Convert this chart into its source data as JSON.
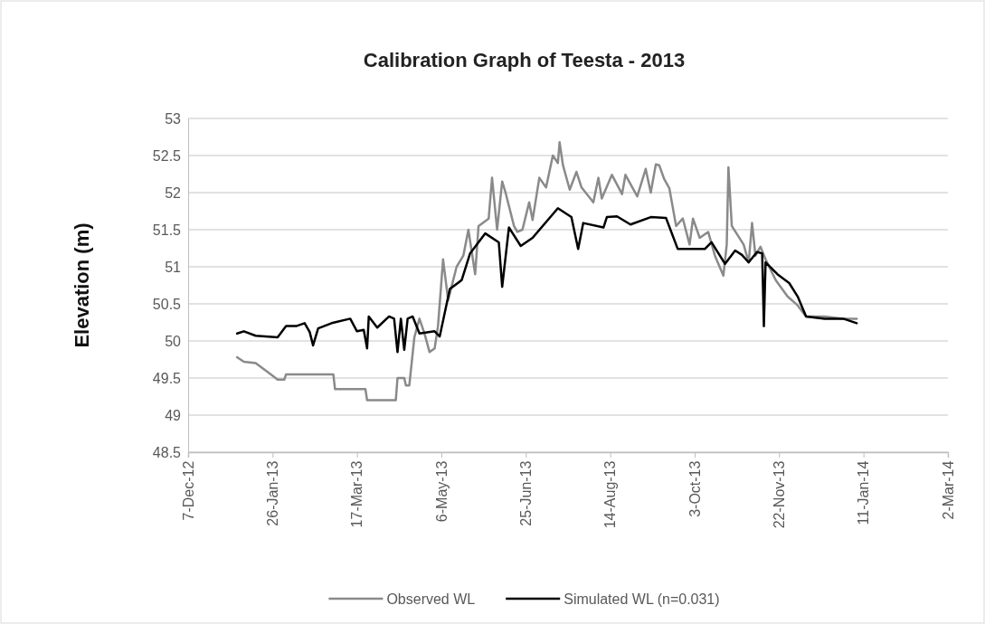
{
  "chart_data": {
    "type": "line",
    "title": "Calibration Graph of Teesta - 2013",
    "ylabel": "Elevation (m)",
    "xlim": [
      "2012-12-07",
      "2014-03-02"
    ],
    "xticks": [
      {
        "value": "2012-12-07",
        "label": "7-Dec-12"
      },
      {
        "value": "2013-01-26",
        "label": "26-Jan-13"
      },
      {
        "value": "2013-03-17",
        "label": "17-Mar-13"
      },
      {
        "value": "2013-05-06",
        "label": "6-May-13"
      },
      {
        "value": "2013-06-25",
        "label": "25-Jun-13"
      },
      {
        "value": "2013-08-14",
        "label": "14-Aug-13"
      },
      {
        "value": "2013-10-03",
        "label": "3-Oct-13"
      },
      {
        "value": "2013-11-22",
        "label": "22-Nov-13"
      },
      {
        "value": "2014-01-11",
        "label": "11-Jan-14"
      },
      {
        "value": "2014-03-02",
        "label": "2-Mar-14"
      }
    ],
    "ylim": [
      48.5,
      53
    ],
    "yticks": [
      48.5,
      49,
      49.5,
      50,
      50.5,
      51,
      51.5,
      52,
      52.5,
      53
    ],
    "grid": "y",
    "legend": "bottom",
    "marker": "none",
    "line_style": "solid",
    "series": [
      {
        "name": "Observed WL",
        "color": "#8a8a8a",
        "x": [
          "2013-01-05",
          "2013-01-09",
          "2013-01-16",
          "2013-01-25",
          "2013-01-29",
          "2013-02-02",
          "2013-02-03",
          "2013-03-03",
          "2013-03-04",
          "2013-03-22",
          "2013-03-23",
          "2013-04-09",
          "2013-04-10",
          "2013-04-14",
          "2013-04-15",
          "2013-04-17",
          "2013-04-20",
          "2013-04-23",
          "2013-04-26",
          "2013-04-29",
          "2013-05-02",
          "2013-05-04",
          "2013-05-07",
          "2013-05-10",
          "2013-05-15",
          "2013-05-19",
          "2013-05-22",
          "2013-05-26",
          "2013-05-28",
          "2013-06-03",
          "2013-06-05",
          "2013-06-08",
          "2013-06-11",
          "2013-06-13",
          "2013-06-18",
          "2013-06-20",
          "2013-06-23",
          "2013-06-27",
          "2013-06-29",
          "2013-07-03",
          "2013-07-07",
          "2013-07-11",
          "2013-07-14",
          "2013-07-15",
          "2013-07-17",
          "2013-07-21",
          "2013-07-25",
          "2013-07-28",
          "2013-08-04",
          "2013-08-07",
          "2013-08-09",
          "2013-08-15",
          "2013-08-21",
          "2013-08-23",
          "2013-08-30",
          "2013-09-04",
          "2013-09-07",
          "2013-09-10",
          "2013-09-12",
          "2013-09-15",
          "2013-09-18",
          "2013-09-22",
          "2013-09-26",
          "2013-09-30",
          "2013-10-02",
          "2013-10-06",
          "2013-10-11",
          "2013-10-15",
          "2013-10-20",
          "2013-10-22",
          "2013-10-23",
          "2013-10-25",
          "2013-11-01",
          "2013-11-04",
          "2013-11-06",
          "2013-11-08",
          "2013-11-11",
          "2013-11-14",
          "2013-11-20",
          "2013-11-27",
          "2013-12-03",
          "2013-12-08",
          "2013-12-19",
          "2013-12-30",
          "2014-01-07"
        ],
        "values": [
          49.78,
          49.72,
          49.7,
          49.55,
          49.48,
          49.48,
          49.55,
          49.55,
          49.35,
          49.35,
          49.2,
          49.2,
          49.5,
          49.5,
          49.4,
          49.4,
          50.05,
          50.3,
          50.1,
          49.85,
          49.9,
          50.2,
          51.1,
          50.55,
          51.0,
          51.15,
          51.5,
          50.9,
          51.55,
          51.65,
          52.2,
          51.5,
          52.15,
          52.0,
          51.55,
          51.47,
          51.5,
          51.87,
          51.63,
          52.2,
          52.07,
          52.5,
          52.4,
          52.68,
          52.37,
          52.04,
          52.28,
          52.07,
          51.87,
          52.2,
          51.92,
          52.24,
          51.98,
          52.24,
          51.95,
          52.32,
          52.0,
          52.38,
          52.37,
          52.18,
          52.06,
          51.55,
          51.65,
          51.3,
          51.65,
          51.39,
          51.47,
          51.15,
          50.88,
          51.3,
          52.34,
          51.55,
          51.3,
          51.06,
          51.59,
          51.15,
          51.27,
          51.1,
          50.82,
          50.6,
          50.48,
          50.33,
          50.33,
          50.3,
          50.3
        ]
      },
      {
        "name": "Simulated WL (n=0.031)",
        "color": "#000000",
        "x": [
          "2013-01-05",
          "2013-01-09",
          "2013-01-16",
          "2013-01-29",
          "2013-02-03",
          "2013-02-09",
          "2013-02-14",
          "2013-02-17",
          "2013-02-19",
          "2013-02-22",
          "2013-03-02",
          "2013-03-13",
          "2013-03-17",
          "2013-03-21",
          "2013-03-23",
          "2013-03-24",
          "2013-03-29",
          "2013-04-05",
          "2013-04-08",
          "2013-04-10",
          "2013-04-12",
          "2013-04-14",
          "2013-04-16",
          "2013-04-19",
          "2013-04-23",
          "2013-05-02",
          "2013-05-05",
          "2013-05-11",
          "2013-05-18",
          "2013-05-23",
          "2013-06-01",
          "2013-06-09",
          "2013-06-11",
          "2013-06-15",
          "2013-06-22",
          "2013-06-29",
          "2013-07-14",
          "2013-07-22",
          "2013-07-26",
          "2013-07-29",
          "2013-08-10",
          "2013-08-12",
          "2013-08-18",
          "2013-08-26",
          "2013-09-07",
          "2013-09-16",
          "2013-09-23",
          "2013-10-09",
          "2013-10-13",
          "2013-10-16",
          "2013-10-21",
          "2013-10-27",
          "2013-10-31",
          "2013-11-04",
          "2013-11-09",
          "2013-11-12",
          "2013-11-13",
          "2013-11-14",
          "2013-11-21",
          "2013-11-28",
          "2013-12-03",
          "2013-12-08",
          "2013-12-19",
          "2013-12-30",
          "2014-01-07"
        ],
        "values": [
          50.1,
          50.13,
          50.07,
          50.05,
          50.2,
          50.2,
          50.24,
          50.12,
          49.94,
          50.17,
          50.24,
          50.3,
          50.13,
          50.15,
          49.9,
          50.33,
          50.18,
          50.33,
          50.3,
          49.85,
          50.3,
          49.88,
          50.3,
          50.33,
          50.1,
          50.13,
          50.06,
          50.7,
          50.82,
          51.18,
          51.45,
          51.33,
          50.73,
          51.53,
          51.28,
          51.39,
          51.79,
          51.67,
          51.24,
          51.59,
          51.53,
          51.67,
          51.68,
          51.57,
          51.67,
          51.66,
          51.24,
          51.24,
          51.33,
          51.22,
          51.04,
          51.22,
          51.16,
          51.06,
          51.2,
          51.18,
          50.2,
          51.06,
          50.9,
          50.78,
          50.6,
          50.33,
          50.3,
          50.3,
          50.24
        ]
      }
    ]
  }
}
